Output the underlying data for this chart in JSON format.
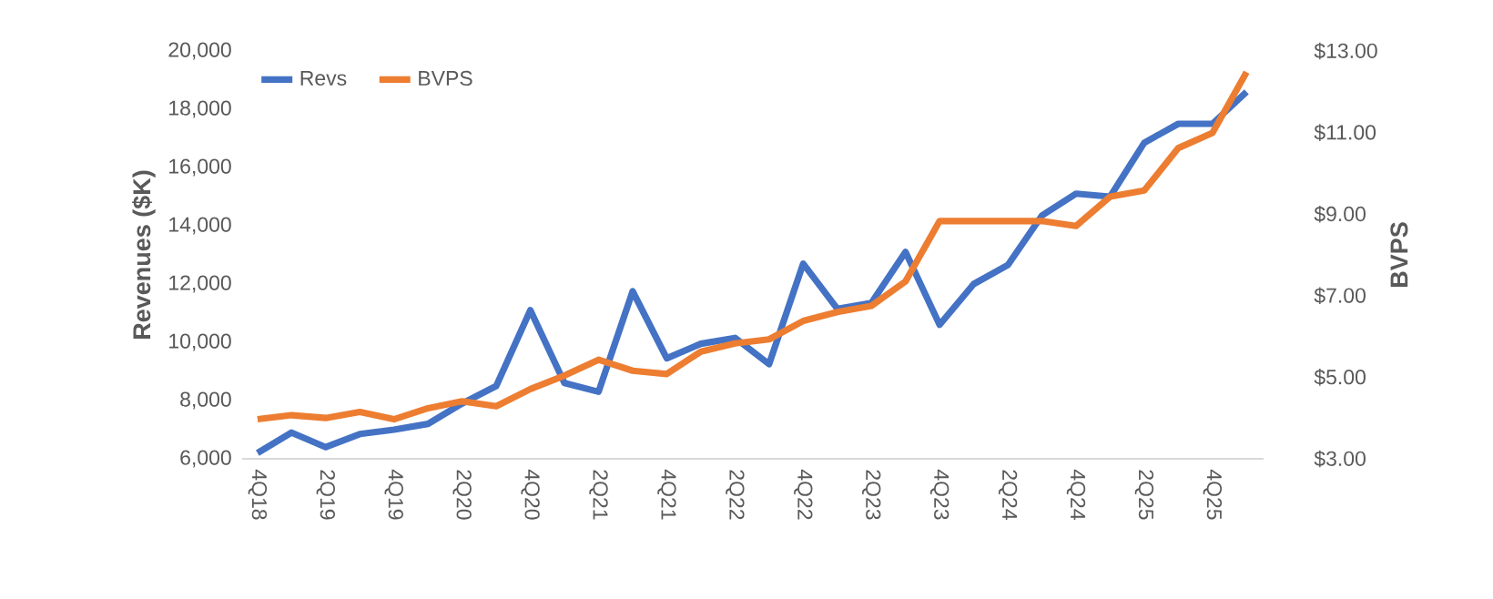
{
  "chart_data": {
    "type": "line",
    "ylabel": "Revenues ($K)",
    "y2label": "BVPS",
    "categories": [
      "4Q18",
      null,
      "2Q19",
      null,
      "4Q19",
      null,
      "2Q20",
      null,
      "4Q20",
      null,
      "2Q21",
      null,
      "4Q21",
      null,
      "2Q22",
      null,
      "4Q22",
      null,
      "2Q23",
      null,
      "4Q23",
      null,
      "2Q24",
      null,
      "4Q24",
      null,
      "2Q25",
      null,
      "4Q25",
      null
    ],
    "ylim": [
      6000,
      20000
    ],
    "yticks": [
      {
        "value": 6000,
        "label": "6,000"
      },
      {
        "value": 8000,
        "label": "8,000"
      },
      {
        "value": 10000,
        "label": "10,000"
      },
      {
        "value": 12000,
        "label": "12,000"
      },
      {
        "value": 14000,
        "label": "14,000"
      },
      {
        "value": 16000,
        "label": "16,000"
      },
      {
        "value": 18000,
        "label": "18,000"
      },
      {
        "value": 20000,
        "label": "20,000"
      }
    ],
    "y2lim": [
      3,
      13
    ],
    "y2ticks": [
      {
        "value": 3,
        "label": "$3.00"
      },
      {
        "value": 5,
        "label": "$5.00"
      },
      {
        "value": 7,
        "label": "$7.00"
      },
      {
        "value": 9,
        "label": "$9.00"
      },
      {
        "value": 11,
        "label": "$11.00"
      },
      {
        "value": 13,
        "label": "$13.00"
      }
    ],
    "series": [
      {
        "name": "Revs",
        "color": "#4472c4",
        "values": [
          6200,
          6900,
          6400,
          6850,
          7000,
          7200,
          7900,
          8500,
          11100,
          8600,
          8300,
          11750,
          9450,
          9950,
          10150,
          9250,
          12700,
          11150,
          11350,
          13100,
          10600,
          12000,
          12650,
          14350,
          15100,
          15000,
          16850,
          17500,
          17500,
          18600
        ]
      },
      {
        "name": "BVPS",
        "color": "#ed7d31",
        "axis": "y2",
        "values": [
          3.97,
          4.07,
          4.0,
          4.15,
          3.97,
          4.24,
          4.41,
          4.29,
          4.71,
          5.04,
          5.43,
          5.16,
          5.08,
          5.63,
          5.83,
          5.93,
          6.38,
          6.6,
          6.75,
          7.35,
          8.83,
          8.83,
          8.83,
          8.83,
          8.71,
          9.43,
          9.58,
          10.62,
          10.99,
          12.48
        ]
      }
    ],
    "legend": "top left",
    "marker": "none",
    "line_style": "solid",
    "grid": false
  }
}
